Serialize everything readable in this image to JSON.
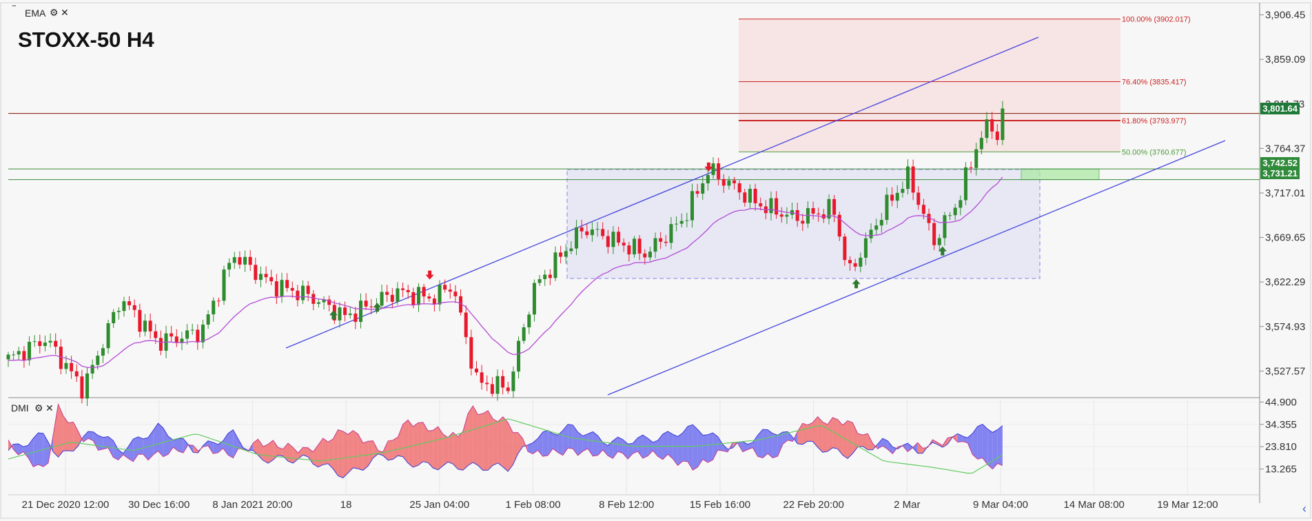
{
  "header": {
    "indicator_label": "EMA",
    "title": "STOXX-50 H4",
    "subpanel_label": "DMI",
    "minimize_icon": "minus-icon",
    "settings_icon": "gear-icon",
    "close_icon": "close-icon",
    "scroll_icon": "chevron-left-icon"
  },
  "colors": {
    "bull": "#2e8b2e",
    "bear": "#e8192c",
    "ema": "#b44ad6",
    "channel": "#4444dd",
    "fib": "#cc2222",
    "fib_mid": "#4a9a3a",
    "dmi_pos": "#7070f0",
    "dmi_neg": "#f07070",
    "adx": "#5fcc5f",
    "last_price_bg": "#1f7a3a",
    "level_bg": "#2f8a3a"
  },
  "chart_data": [
    {
      "type": "candlestick",
      "title": "STOXX-50 H4",
      "y_ticks": [
        "3,906.45",
        "3,859.09",
        "3,811.73",
        "3,764.37",
        "3,717.01",
        "3,669.65",
        "3,622.29",
        "3,574.93",
        "3,527.57"
      ],
      "x_ticks": [
        "21 Dec 2020 12:00",
        "30 Dec 16:00",
        "8 Jan 2021 20:00",
        "18",
        "25 Jan 04:00",
        "1 Feb 08:00",
        "8 Feb 12:00",
        "15 Feb 16:00",
        "22 Feb 20:00",
        "2 Mar",
        "9 Mar 04:00",
        "14 Mar 08:00",
        "19 Mar 12:00"
      ],
      "ylim": [
        3500,
        3912
      ],
      "last_price": "3,801.64",
      "horizontal_levels": [
        {
          "label": "3,742.52",
          "value": 3742.52
        },
        {
          "label": "3,731.21",
          "value": 3731.21
        },
        {
          "label": "",
          "value": 3801.64
        }
      ],
      "fibonacci": [
        {
          "label": "100.00% (3902.017)",
          "value": 3902.017
        },
        {
          "label": "76.40% (3835.417)",
          "value": 3835.417
        },
        {
          "label": "61.80% (3793.977)",
          "value": 3793.977
        },
        {
          "label": "50.00% (3760.677)",
          "value": 3760.677
        }
      ],
      "range_box": {
        "top": 3742,
        "bottom": 3626
      },
      "arrows": [
        {
          "dir": "up",
          "t": 0.26,
          "price": 3587
        },
        {
          "dir": "up",
          "t": 0.295,
          "price": 3595
        },
        {
          "dir": "down",
          "t": 0.337,
          "price": 3630
        },
        {
          "dir": "down",
          "t": 0.56,
          "price": 3745
        },
        {
          "dir": "up",
          "t": 0.678,
          "price": 3620
        },
        {
          "dir": "up",
          "t": 0.747,
          "price": 3655
        }
      ],
      "anchors": [
        [
          0,
          3540
        ],
        [
          0.03,
          3562
        ],
        [
          0.06,
          3508
        ],
        [
          0.09,
          3605
        ],
        [
          0.12,
          3558
        ],
        [
          0.155,
          3570
        ],
        [
          0.18,
          3652
        ],
        [
          0.21,
          3620
        ],
        [
          0.24,
          3608
        ],
        [
          0.27,
          3585
        ],
        [
          0.31,
          3612
        ],
        [
          0.34,
          3605
        ],
        [
          0.355,
          3620
        ],
        [
          0.375,
          3515
        ],
        [
          0.4,
          3510
        ],
        [
          0.42,
          3615
        ],
        [
          0.46,
          3680
        ],
        [
          0.51,
          3652
        ],
        [
          0.54,
          3690
        ],
        [
          0.56,
          3742
        ],
        [
          0.6,
          3705
        ],
        [
          0.63,
          3690
        ],
        [
          0.66,
          3700
        ],
        [
          0.672,
          3630
        ],
        [
          0.7,
          3700
        ],
        [
          0.72,
          3735
        ],
        [
          0.74,
          3665
        ],
        [
          0.76,
          3710
        ],
        [
          0.775,
          3770
        ],
        [
          0.785,
          3792
        ],
        [
          0.792,
          3775
        ],
        [
          0.795,
          3801
        ]
      ]
    },
    {
      "type": "area",
      "title": "DMI",
      "y_ticks": [
        "44.900",
        "34.355",
        "23.810",
        "13.265"
      ],
      "ylim": [
        5,
        46
      ],
      "plus_di_anchors": [
        [
          0,
          22
        ],
        [
          0.03,
          30
        ],
        [
          0.04,
          18
        ],
        [
          0.07,
          32
        ],
        [
          0.09,
          22
        ],
        [
          0.12,
          33
        ],
        [
          0.15,
          22
        ],
        [
          0.18,
          30
        ],
        [
          0.2,
          18
        ],
        [
          0.24,
          18
        ],
        [
          0.27,
          10
        ],
        [
          0.3,
          20
        ],
        [
          0.33,
          15
        ],
        [
          0.4,
          14
        ],
        [
          0.42,
          28
        ],
        [
          0.45,
          33
        ],
        [
          0.48,
          26
        ],
        [
          0.52,
          28
        ],
        [
          0.55,
          33
        ],
        [
          0.58,
          23
        ],
        [
          0.61,
          32
        ],
        [
          0.64,
          25
        ],
        [
          0.67,
          20
        ],
        [
          0.7,
          26
        ],
        [
          0.73,
          22
        ],
        [
          0.75,
          26
        ],
        [
          0.78,
          33
        ],
        [
          0.795,
          32
        ]
      ],
      "minus_di_anchors": [
        [
          0,
          25
        ],
        [
          0.03,
          12
        ],
        [
          0.04,
          42
        ],
        [
          0.06,
          28
        ],
        [
          0.09,
          18
        ],
        [
          0.12,
          20
        ],
        [
          0.15,
          24
        ],
        [
          0.18,
          20
        ],
        [
          0.2,
          26
        ],
        [
          0.24,
          22
        ],
        [
          0.27,
          32
        ],
        [
          0.3,
          22
        ],
        [
          0.32,
          36
        ],
        [
          0.36,
          28
        ],
        [
          0.37,
          42
        ],
        [
          0.4,
          35
        ],
        [
          0.42,
          20
        ],
        [
          0.45,
          22
        ],
        [
          0.48,
          20
        ],
        [
          0.52,
          20
        ],
        [
          0.55,
          14
        ],
        [
          0.58,
          25
        ],
        [
          0.61,
          18
        ],
        [
          0.64,
          36
        ],
        [
          0.67,
          36
        ],
        [
          0.7,
          22
        ],
        [
          0.73,
          24
        ],
        [
          0.76,
          28
        ],
        [
          0.78,
          16
        ],
        [
          0.795,
          14
        ]
      ],
      "adx_anchors": [
        [
          0,
          18
        ],
        [
          0.05,
          26
        ],
        [
          0.1,
          22
        ],
        [
          0.15,
          30
        ],
        [
          0.2,
          20
        ],
        [
          0.25,
          17
        ],
        [
          0.3,
          21
        ],
        [
          0.35,
          28
        ],
        [
          0.4,
          37
        ],
        [
          0.45,
          28
        ],
        [
          0.5,
          24
        ],
        [
          0.55,
          24
        ],
        [
          0.6,
          27
        ],
        [
          0.65,
          34
        ],
        [
          0.7,
          17
        ],
        [
          0.74,
          14
        ],
        [
          0.77,
          11
        ],
        [
          0.795,
          20
        ]
      ]
    }
  ]
}
